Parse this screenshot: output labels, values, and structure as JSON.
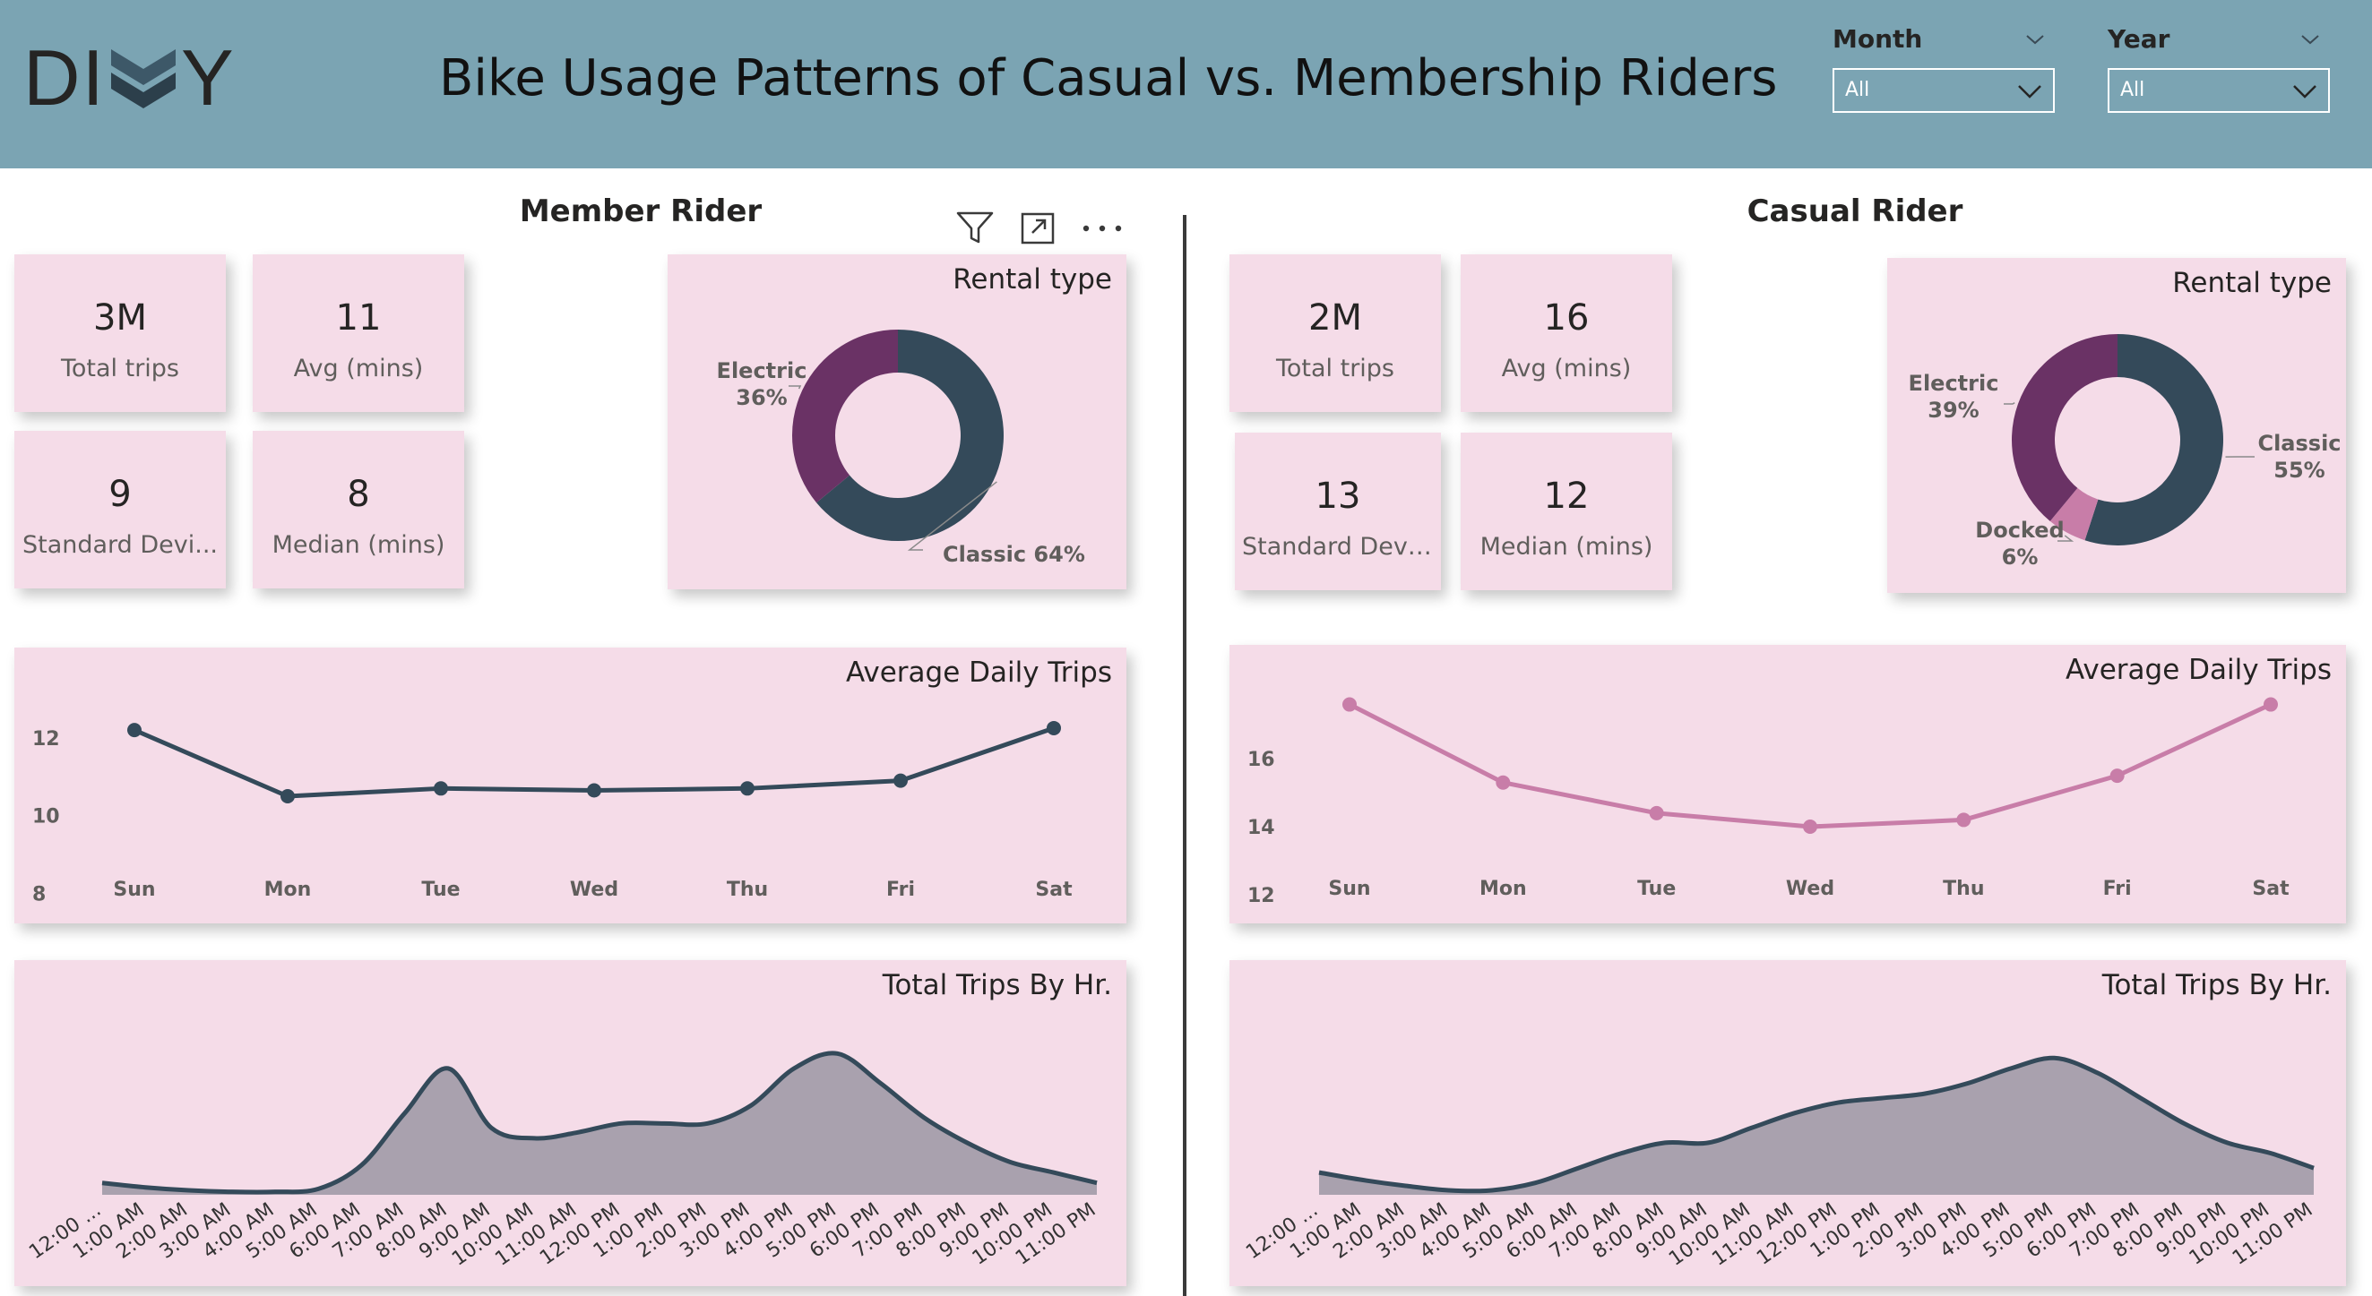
{
  "header": {
    "logo_left": "DI",
    "logo_right": "Y",
    "title": "Bike Usage Patterns of Casual vs. Membership Riders",
    "bg_color": "#7BA4B3"
  },
  "slicers": {
    "month": {
      "label": "Month",
      "value": "All"
    },
    "year": {
      "label": "Year",
      "value": "All"
    }
  },
  "member": {
    "title": "Member Rider",
    "kpis": [
      {
        "value": "3M",
        "label": "Total trips"
      },
      {
        "value": "11",
        "label": "Avg (mins)"
      },
      {
        "value": "9",
        "label": "Standard Devi..."
      },
      {
        "value": "8",
        "label": "Median (mins)"
      }
    ],
    "rental_title": "Rental type",
    "daily_title": "Average Daily Trips",
    "hourly_title": "Total Trips By Hr."
  },
  "casual": {
    "title": "Casual Rider",
    "kpis": [
      {
        "value": "2M",
        "label": "Total trips"
      },
      {
        "value": "16",
        "label": "Avg (mins)"
      },
      {
        "value": "13",
        "label": "Standard Devi..."
      },
      {
        "value": "12",
        "label": "Median (mins)"
      }
    ],
    "rental_title": "Rental type",
    "daily_title": "Average Daily Trips",
    "hourly_title": "Total Trips By Hr."
  },
  "toolbar_icons": [
    "filter-icon",
    "focus-mode-icon",
    "more-options-icon"
  ],
  "colors": {
    "card_bg": "#F5DCE8",
    "classic": "#344A5A",
    "electric": "#6A3265",
    "docked": "#C87DA8",
    "member_line": "#344A5A",
    "casual_line": "#C87DA8",
    "area_fill": "#A9A1AE"
  },
  "chart_data": [
    {
      "id": "member-rental",
      "type": "pie",
      "title": "Rental type",
      "labels": [
        "Classic",
        "Electric"
      ],
      "values": [
        64,
        36
      ],
      "display": [
        "Classic 64%",
        "Electric\n36%"
      ]
    },
    {
      "id": "casual-rental",
      "type": "pie",
      "title": "Rental type",
      "labels": [
        "Classic",
        "Docked",
        "Electric"
      ],
      "values": [
        55,
        6,
        39
      ],
      "display": [
        "Classic\n55%",
        "Docked\n6%",
        "Electric\n39%"
      ]
    },
    {
      "id": "member-daily",
      "type": "line",
      "title": "Average Daily Trips",
      "categories": [
        "Sun",
        "Mon",
        "Tue",
        "Wed",
        "Thu",
        "Fri",
        "Sat"
      ],
      "values": [
        12.2,
        10.5,
        10.7,
        10.65,
        10.7,
        10.9,
        12.25
      ],
      "yticks": [
        8,
        10,
        12
      ],
      "ylim": [
        7.6,
        13.4
      ]
    },
    {
      "id": "casual-daily",
      "type": "line",
      "title": "Average Daily Trips",
      "categories": [
        "Sun",
        "Mon",
        "Tue",
        "Wed",
        "Thu",
        "Fri",
        "Sat"
      ],
      "values": [
        17.6,
        15.3,
        14.4,
        14.0,
        14.2,
        15.5,
        17.6
      ],
      "yticks": [
        12,
        14,
        16
      ],
      "ylim": [
        11.6,
        18.3
      ]
    },
    {
      "id": "member-hourly",
      "type": "area",
      "title": "Total Trips By Hr.",
      "categories": [
        "12:00 ...",
        "1:00 AM",
        "2:00 AM",
        "3:00 AM",
        "4:00 AM",
        "5:00 AM",
        "6:00 AM",
        "7:00 AM",
        "8:00 AM",
        "9:00 AM",
        "10:00 AM",
        "11:00 AM",
        "12:00 PM",
        "1:00 PM",
        "2:00 PM",
        "3:00 PM",
        "4:00 PM",
        "5:00 PM",
        "6:00 PM",
        "7:00 PM",
        "8:00 PM",
        "9:00 PM",
        "10:00 PM",
        "11:00 PM"
      ],
      "values": [
        8,
        5,
        3,
        2,
        2,
        4,
        20,
        55,
        85,
        45,
        38,
        42,
        48,
        48,
        48,
        60,
        85,
        95,
        75,
        52,
        35,
        22,
        15,
        8
      ],
      "ylim": [
        0,
        100
      ]
    },
    {
      "id": "casual-hourly",
      "type": "area",
      "title": "Total Trips By Hr.",
      "categories": [
        "12:00 ...",
        "1:00 AM",
        "2:00 AM",
        "3:00 AM",
        "4:00 AM",
        "5:00 AM",
        "6:00 AM",
        "7:00 AM",
        "8:00 AM",
        "9:00 AM",
        "10:00 AM",
        "11:00 AM",
        "12:00 PM",
        "1:00 PM",
        "2:00 PM",
        "3:00 PM",
        "4:00 PM",
        "5:00 PM",
        "6:00 PM",
        "7:00 PM",
        "8:00 PM",
        "9:00 PM",
        "10:00 PM",
        "11:00 PM"
      ],
      "values": [
        15,
        10,
        6,
        3,
        3,
        8,
        18,
        28,
        35,
        35,
        45,
        55,
        62,
        65,
        68,
        75,
        85,
        92,
        82,
        65,
        48,
        35,
        28,
        18
      ],
      "ylim": [
        0,
        100
      ]
    }
  ]
}
